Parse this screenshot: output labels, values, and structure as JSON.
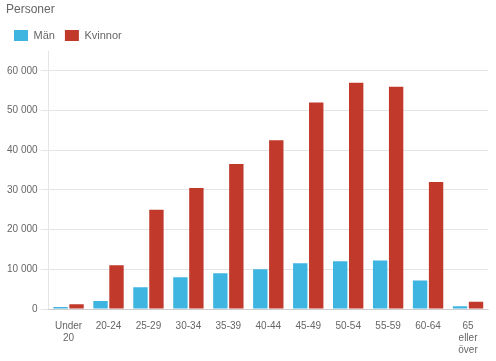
{
  "chart_data": {
    "type": "bar",
    "ylabel": "Personer",
    "categories": [
      "Under\n20",
      "20-24",
      "25-29",
      "30-34",
      "35-39",
      "40-44",
      "45-49",
      "50-54",
      "55-59",
      "60-64",
      "65\neller\növer"
    ],
    "series": [
      {
        "name": "Män",
        "color": "#3eb4e0",
        "values": [
          500,
          2000,
          5500,
          8000,
          9000,
          10000,
          11500,
          12000,
          12200,
          7200,
          700
        ]
      },
      {
        "name": "Kvinnor",
        "color": "#c0392b",
        "values": [
          1200,
          11000,
          25000,
          30500,
          36500,
          42500,
          52000,
          57000,
          56000,
          32000,
          1800
        ]
      }
    ],
    "ylim": [
      0,
      65000
    ],
    "yticks": [
      0,
      {
        "value": 10000,
        "label": "10 000"
      },
      {
        "value": 20000,
        "label": "20 000"
      },
      {
        "value": 30000,
        "label": "30 000"
      },
      {
        "value": 40000,
        "label": "40 000"
      },
      {
        "value": 50000,
        "label": "50 000"
      },
      {
        "value": 60000,
        "label": "60 000"
      }
    ],
    "grid": true,
    "legend": "upper left"
  }
}
